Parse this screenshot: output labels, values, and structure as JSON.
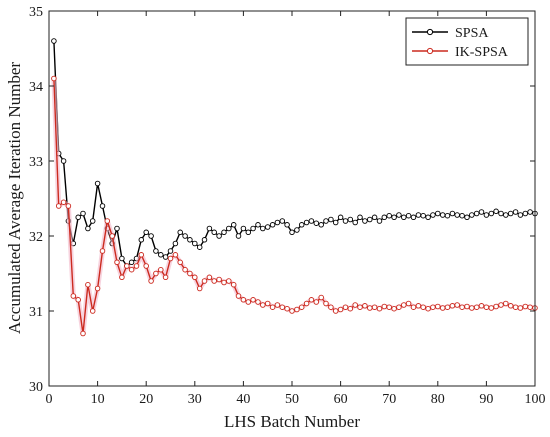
{
  "chart_data": {
    "type": "line",
    "xlabel": "LHS Batch Number",
    "ylabel": "Accumulated Average Iteration Number",
    "xlim": [
      0,
      100
    ],
    "ylim": [
      30,
      35
    ],
    "x_ticks": [
      0,
      10,
      20,
      30,
      40,
      50,
      60,
      70,
      80,
      90,
      100
    ],
    "y_ticks": [
      30,
      31,
      32,
      33,
      34,
      35
    ],
    "grid": false,
    "legend_position": "top-right",
    "series": [
      {
        "name": "SPSA",
        "color": "#000000",
        "marker": "open-circle",
        "x": [
          1,
          2,
          3,
          4,
          5,
          6,
          7,
          8,
          9,
          10,
          11,
          12,
          13,
          14,
          15,
          16,
          17,
          18,
          19,
          20,
          21,
          22,
          23,
          24,
          25,
          26,
          27,
          28,
          29,
          30,
          31,
          32,
          33,
          34,
          35,
          36,
          37,
          38,
          39,
          40,
          41,
          42,
          43,
          44,
          45,
          46,
          47,
          48,
          49,
          50,
          51,
          52,
          53,
          54,
          55,
          56,
          57,
          58,
          59,
          60,
          61,
          62,
          63,
          64,
          65,
          66,
          67,
          68,
          69,
          70,
          71,
          72,
          73,
          74,
          75,
          76,
          77,
          78,
          79,
          80,
          81,
          82,
          83,
          84,
          85,
          86,
          87,
          88,
          89,
          90,
          91,
          92,
          93,
          94,
          95,
          96,
          97,
          98,
          99,
          100
        ],
        "values": [
          34.6,
          33.1,
          33.0,
          32.2,
          31.9,
          32.25,
          32.3,
          32.1,
          32.2,
          32.7,
          32.4,
          32.1,
          31.9,
          32.1,
          31.7,
          31.6,
          31.65,
          31.7,
          31.95,
          32.05,
          32.0,
          31.8,
          31.75,
          31.72,
          31.8,
          31.9,
          32.05,
          32.0,
          31.95,
          31.9,
          31.85,
          31.95,
          32.1,
          32.05,
          32.0,
          32.05,
          32.1,
          32.15,
          32.0,
          32.1,
          32.05,
          32.1,
          32.15,
          32.1,
          32.12,
          32.15,
          32.18,
          32.2,
          32.15,
          32.05,
          32.08,
          32.15,
          32.18,
          32.2,
          32.17,
          32.15,
          32.2,
          32.22,
          32.18,
          32.25,
          32.2,
          32.22,
          32.18,
          32.25,
          32.2,
          32.22,
          32.25,
          32.2,
          32.25,
          32.27,
          32.25,
          32.28,
          32.25,
          32.27,
          32.25,
          32.28,
          32.27,
          32.25,
          32.28,
          32.3,
          32.28,
          32.27,
          32.3,
          32.28,
          32.27,
          32.25,
          32.28,
          32.3,
          32.32,
          32.28,
          32.3,
          32.33,
          32.3,
          32.28,
          32.3,
          32.32,
          32.28,
          32.3,
          32.32,
          32.3
        ]
      },
      {
        "name": "IK-SPSA",
        "color": "#cc2a1f",
        "marker": "open-circle",
        "x": [
          1,
          2,
          3,
          4,
          5,
          6,
          7,
          8,
          9,
          10,
          11,
          12,
          13,
          14,
          15,
          16,
          17,
          18,
          19,
          20,
          21,
          22,
          23,
          24,
          25,
          26,
          27,
          28,
          29,
          30,
          31,
          32,
          33,
          34,
          35,
          36,
          37,
          38,
          39,
          40,
          41,
          42,
          43,
          44,
          45,
          46,
          47,
          48,
          49,
          50,
          51,
          52,
          53,
          54,
          55,
          56,
          57,
          58,
          59,
          60,
          61,
          62,
          63,
          64,
          65,
          66,
          67,
          68,
          69,
          70,
          71,
          72,
          73,
          74,
          75,
          76,
          77,
          78,
          79,
          80,
          81,
          82,
          83,
          84,
          85,
          86,
          87,
          88,
          89,
          90,
          91,
          92,
          93,
          94,
          95,
          96,
          97,
          98,
          99,
          100
        ],
        "values": [
          34.1,
          32.4,
          32.45,
          32.4,
          31.2,
          31.15,
          30.7,
          31.35,
          31.0,
          31.3,
          31.8,
          32.2,
          32.0,
          31.65,
          31.45,
          31.6,
          31.55,
          31.6,
          31.75,
          31.6,
          31.4,
          31.5,
          31.55,
          31.45,
          31.7,
          31.75,
          31.65,
          31.55,
          31.5,
          31.45,
          31.3,
          31.4,
          31.45,
          31.4,
          31.42,
          31.38,
          31.4,
          31.35,
          31.2,
          31.15,
          31.12,
          31.15,
          31.12,
          31.08,
          31.1,
          31.05,
          31.08,
          31.05,
          31.03,
          31.0,
          31.02,
          31.05,
          31.1,
          31.15,
          31.12,
          31.18,
          31.1,
          31.05,
          31.0,
          31.02,
          31.05,
          31.03,
          31.08,
          31.05,
          31.07,
          31.04,
          31.05,
          31.03,
          31.06,
          31.05,
          31.03,
          31.05,
          31.08,
          31.1,
          31.05,
          31.07,
          31.05,
          31.03,
          31.05,
          31.06,
          31.04,
          31.05,
          31.07,
          31.08,
          31.05,
          31.06,
          31.04,
          31.05,
          31.07,
          31.05,
          31.04,
          31.06,
          31.08,
          31.1,
          31.07,
          31.05,
          31.04,
          31.06,
          31.05,
          31.04
        ]
      }
    ]
  }
}
